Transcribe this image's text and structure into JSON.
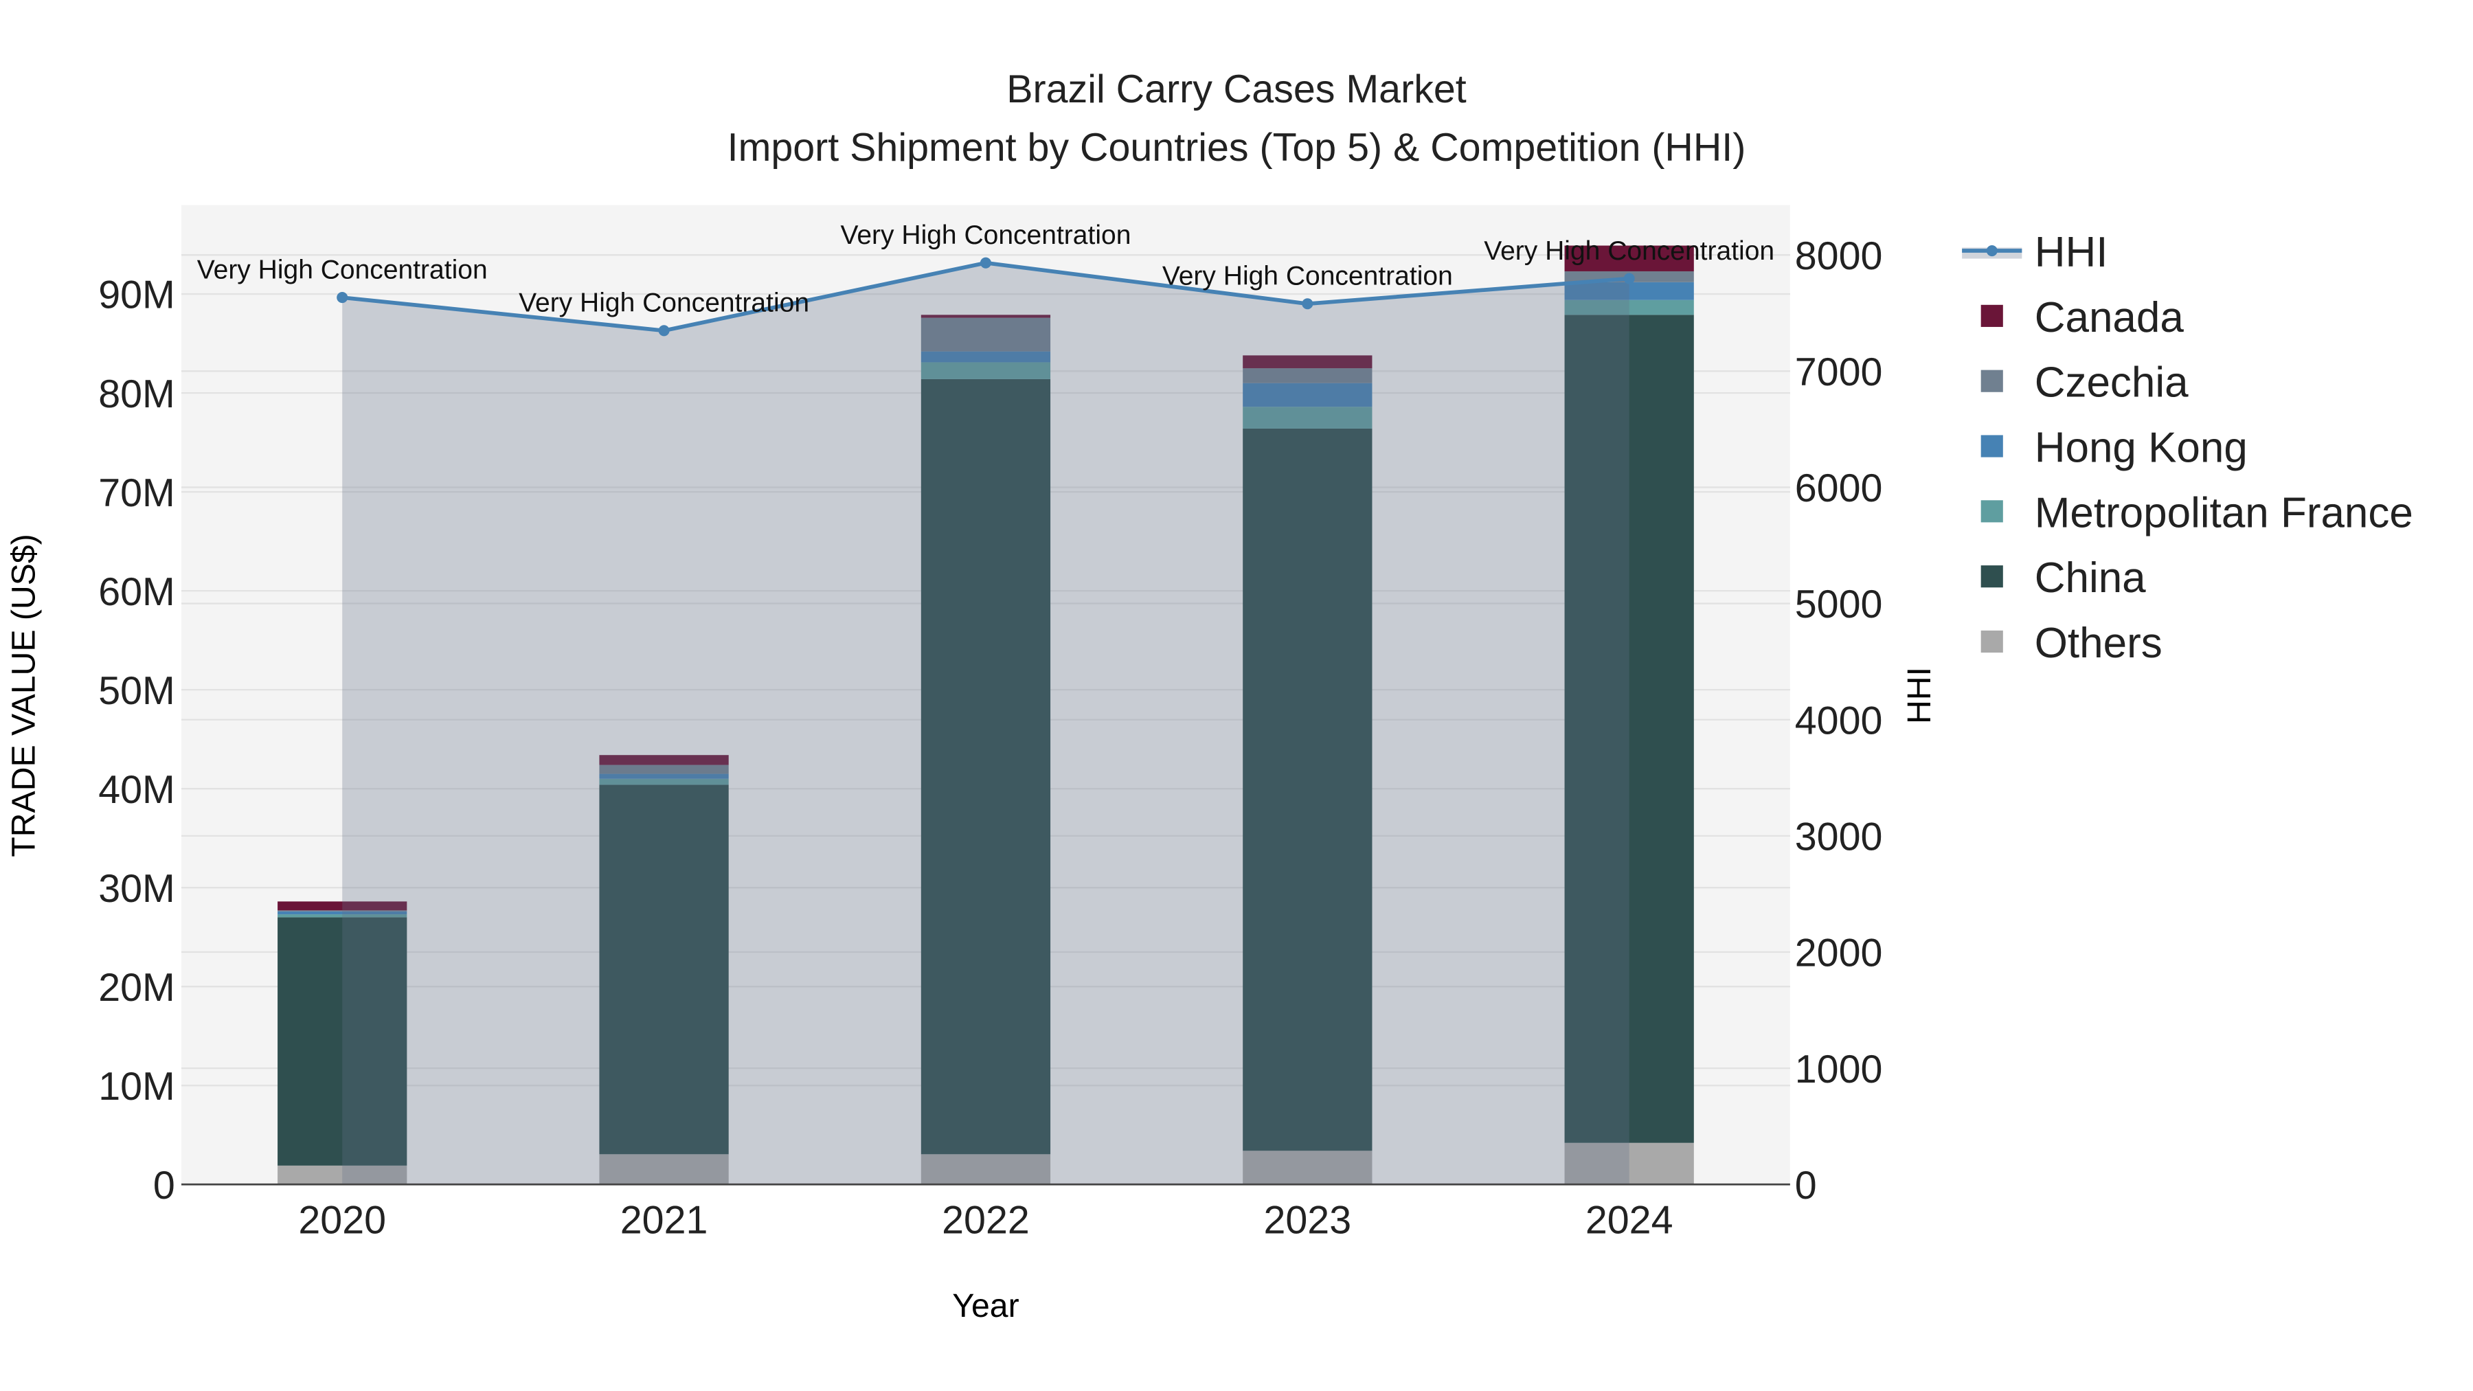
{
  "chart_data": {
    "type": "bar",
    "title": "Brazil Carry Cases Market",
    "subtitle": "Import Shipment by Countries (Top 5) & Competition (HHI)",
    "xlabel": "Year",
    "ylabel": "TRADE VALUE (US$)",
    "y2label": "HHI",
    "categories": [
      "2020",
      "2021",
      "2022",
      "2023",
      "2024"
    ],
    "ylim": [
      0,
      99000000
    ],
    "y2lim": [
      0,
      8430
    ],
    "yticks": [
      {
        "v": 0,
        "t": "0"
      },
      {
        "v": 10000000,
        "t": "10M"
      },
      {
        "v": 20000000,
        "t": "20M"
      },
      {
        "v": 30000000,
        "t": "30M"
      },
      {
        "v": 40000000,
        "t": "40M"
      },
      {
        "v": 50000000,
        "t": "50M"
      },
      {
        "v": 60000000,
        "t": "60M"
      },
      {
        "v": 70000000,
        "t": "70M"
      },
      {
        "v": 80000000,
        "t": "80M"
      },
      {
        "v": 90000000,
        "t": "90M"
      }
    ],
    "y2ticks": [
      {
        "v": 0,
        "t": "0"
      },
      {
        "v": 1000,
        "t": "1000"
      },
      {
        "v": 2000,
        "t": "2000"
      },
      {
        "v": 3000,
        "t": "3000"
      },
      {
        "v": 4000,
        "t": "4000"
      },
      {
        "v": 5000,
        "t": "5000"
      },
      {
        "v": 6000,
        "t": "6000"
      },
      {
        "v": 7000,
        "t": "7000"
      },
      {
        "v": 8000,
        "t": "8000"
      }
    ],
    "series": [
      {
        "name": "Others",
        "color": "#A9A9A9",
        "values": [
          1900000,
          3050000,
          3050000,
          3400000,
          4200000
        ]
      },
      {
        "name": "China",
        "color": "#2F4F4F",
        "values": [
          25100000,
          37350000,
          78350000,
          73000000,
          83700000
        ]
      },
      {
        "name": "Metropolitan France",
        "color": "#5F9EA0",
        "values": [
          300000,
          600000,
          1700000,
          2200000,
          1500000
        ]
      },
      {
        "name": "Hong Kong",
        "color": "#4682B4",
        "values": [
          300000,
          500000,
          1100000,
          2400000,
          1800000
        ]
      },
      {
        "name": "Czechia",
        "color": "#708090",
        "values": [
          100000,
          900000,
          3400000,
          1500000,
          1100000
        ]
      },
      {
        "name": "Canada",
        "color": "#6A1538",
        "values": [
          900000,
          1000000,
          300000,
          1300000,
          2600000
        ]
      }
    ],
    "hhi": {
      "name": "HHI",
      "color": "#4682B4",
      "values": [
        7634,
        7349,
        7932,
        7580,
        7797
      ],
      "annotations": [
        "Very High Concentration",
        "Very High Concentration",
        "Very High Concentration",
        "Very High Concentration",
        "Very High Concentration"
      ]
    },
    "legend": [
      "HHI",
      "Canada",
      "Czechia",
      "Hong Kong",
      "Metropolitan France",
      "China",
      "Others"
    ],
    "legend_position": "right",
    "grid": true
  }
}
